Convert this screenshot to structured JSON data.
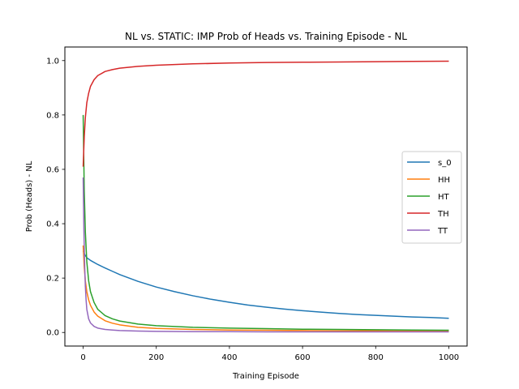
{
  "chart_data": {
    "type": "line",
    "title": "NL vs. STATIC: IMP Prob of Heads vs. Training Episode - NL",
    "xlabel": "Training Episode",
    "ylabel": "Prob (Heads) - NL",
    "xlim": [
      -50,
      1050
    ],
    "ylim": [
      -0.05,
      1.05
    ],
    "xticks": [
      0,
      200,
      400,
      600,
      800,
      1000
    ],
    "yticks": [
      0.0,
      0.2,
      0.4,
      0.6,
      0.8,
      1.0
    ],
    "xtick_labels": [
      "0",
      "200",
      "400",
      "600",
      "800",
      "1000"
    ],
    "ytick_labels": [
      "0.0",
      "0.2",
      "0.4",
      "0.6",
      "0.8",
      "1.0"
    ],
    "legend_position": "center-right",
    "series": [
      {
        "name": "s_0",
        "color": "#1f77b4",
        "x": [
          0,
          5,
          10,
          20,
          40,
          60,
          80,
          100,
          150,
          200,
          250,
          300,
          350,
          400,
          450,
          500,
          550,
          600,
          650,
          700,
          750,
          800,
          850,
          900,
          950,
          1000
        ],
        "y": [
          0.3,
          0.285,
          0.275,
          0.265,
          0.25,
          0.237,
          0.225,
          0.213,
          0.188,
          0.167,
          0.15,
          0.135,
          0.122,
          0.111,
          0.101,
          0.093,
          0.086,
          0.08,
          0.075,
          0.07,
          0.066,
          0.063,
          0.06,
          0.057,
          0.055,
          0.052
        ]
      },
      {
        "name": "HH",
        "color": "#ff7f0e",
        "x": [
          0,
          3,
          6,
          10,
          15,
          20,
          30,
          40,
          60,
          80,
          100,
          150,
          200,
          300,
          400,
          500,
          600,
          700,
          800,
          900,
          1000
        ],
        "y": [
          0.32,
          0.24,
          0.19,
          0.15,
          0.12,
          0.1,
          0.075,
          0.06,
          0.043,
          0.034,
          0.028,
          0.019,
          0.015,
          0.011,
          0.009,
          0.008,
          0.007,
          0.006,
          0.006,
          0.005,
          0.005
        ]
      },
      {
        "name": "HT",
        "color": "#2ca02c",
        "x": [
          0,
          3,
          6,
          10,
          15,
          20,
          30,
          40,
          60,
          80,
          100,
          150,
          200,
          300,
          400,
          500,
          600,
          700,
          800,
          900,
          1000
        ],
        "y": [
          0.8,
          0.52,
          0.37,
          0.26,
          0.19,
          0.15,
          0.11,
          0.085,
          0.062,
          0.05,
          0.042,
          0.031,
          0.025,
          0.019,
          0.016,
          0.014,
          0.012,
          0.011,
          0.01,
          0.009,
          0.008
        ]
      },
      {
        "name": "TH",
        "color": "#d62728",
        "x": [
          0,
          3,
          6,
          10,
          15,
          20,
          30,
          40,
          60,
          80,
          100,
          150,
          200,
          300,
          400,
          500,
          600,
          700,
          800,
          900,
          1000
        ],
        "y": [
          0.61,
          0.72,
          0.79,
          0.845,
          0.88,
          0.905,
          0.93,
          0.945,
          0.96,
          0.967,
          0.972,
          0.979,
          0.983,
          0.988,
          0.991,
          0.993,
          0.994,
          0.995,
          0.996,
          0.997,
          0.998
        ]
      },
      {
        "name": "TT",
        "color": "#9467bd",
        "x": [
          0,
          2,
          4,
          6,
          8,
          10,
          15,
          20,
          30,
          40,
          60,
          80,
          100,
          150,
          200,
          300,
          400,
          500,
          600,
          700,
          800,
          900,
          1000
        ],
        "y": [
          0.57,
          0.38,
          0.25,
          0.17,
          0.12,
          0.085,
          0.05,
          0.035,
          0.022,
          0.016,
          0.011,
          0.009,
          0.007,
          0.005,
          0.004,
          0.003,
          0.003,
          0.002,
          0.002,
          0.002,
          0.002,
          0.002,
          0.002
        ]
      }
    ]
  }
}
